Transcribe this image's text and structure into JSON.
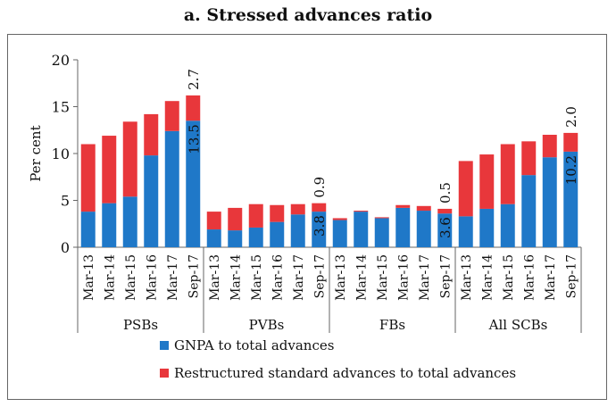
{
  "chart_data": {
    "type": "bar",
    "stacked": true,
    "title": "a. Stressed advances ratio",
    "ylabel": "Per cent",
    "ylim": [
      0,
      20
    ],
    "yticks": [
      0,
      5,
      10,
      15,
      20
    ],
    "groups": [
      {
        "name": "PSBs",
        "categories": [
          "Mar-13",
          "Mar-14",
          "Mar-15",
          "Mar-16",
          "Mar-17",
          "Sep-17"
        ],
        "gnpa": [
          3.8,
          4.7,
          5.4,
          9.8,
          12.4,
          13.5
        ],
        "restructured": [
          7.2,
          7.2,
          8.0,
          4.4,
          3.2,
          2.7
        ],
        "labels": {
          "gnpa_last": "13.5",
          "restructured_last": "2.7"
        }
      },
      {
        "name": "PVBs",
        "categories": [
          "Mar-13",
          "Mar-14",
          "Mar-15",
          "Mar-16",
          "Mar-17",
          "Sep-17"
        ],
        "gnpa": [
          1.9,
          1.8,
          2.1,
          2.7,
          3.5,
          3.8
        ],
        "restructured": [
          1.9,
          2.4,
          2.5,
          1.8,
          1.1,
          0.9
        ],
        "labels": {
          "gnpa_last": "3.8",
          "restructured_last": "0.9"
        }
      },
      {
        "name": "FBs",
        "categories": [
          "Mar-13",
          "Mar-14",
          "Mar-15",
          "Mar-16",
          "Mar-17",
          "Sep-17"
        ],
        "gnpa": [
          2.9,
          3.8,
          3.1,
          4.2,
          3.9,
          3.6
        ],
        "restructured": [
          0.2,
          0.1,
          0.1,
          0.3,
          0.5,
          0.5
        ],
        "labels": {
          "gnpa_last": "3.6",
          "restructured_last": "0.5"
        }
      },
      {
        "name": "All SCBs",
        "categories": [
          "Mar-13",
          "Mar-14",
          "Mar-15",
          "Mar-16",
          "Mar-17",
          "Sep-17"
        ],
        "gnpa": [
          3.3,
          4.1,
          4.6,
          7.7,
          9.6,
          10.2
        ],
        "restructured": [
          5.9,
          5.8,
          6.4,
          3.6,
          2.4,
          2.0
        ],
        "labels": {
          "gnpa_last": "10.2",
          "restructured_last": "2.0"
        }
      }
    ],
    "series": [
      {
        "name": "GNPA to total advances",
        "color": "#1f78c8"
      },
      {
        "name": "Restructured standard advances to total advances",
        "color": "#e8373b"
      }
    ],
    "legend_position": "bottom",
    "grid": false
  }
}
